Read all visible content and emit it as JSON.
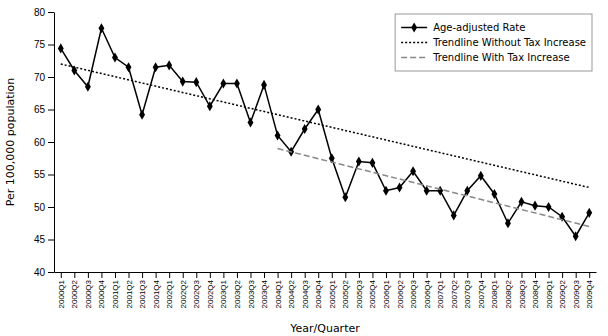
{
  "chart_data": {
    "type": "line",
    "xlabel": "Year/Quarter",
    "ylabel": "Per 100,000 population",
    "categories": [
      "2000Q1",
      "2000Q2",
      "2000Q3",
      "2000Q4",
      "2001Q1",
      "2001Q2",
      "2001Q3",
      "2001Q4",
      "2002Q1",
      "2002Q2",
      "2002Q3",
      "2002Q4",
      "2003Q1",
      "2003Q2",
      "2003Q3",
      "2003Q4",
      "2004Q1",
      "2004Q2",
      "2004Q3",
      "2004Q4",
      "2005Q1",
      "2005Q2",
      "2005Q3",
      "2005Q4",
      "2006Q1",
      "2006Q2",
      "2006Q3",
      "2006Q4",
      "2007Q1",
      "2007Q2",
      "2007Q3",
      "2007Q4",
      "2008Q1",
      "2008Q2",
      "2008Q3",
      "2008Q4",
      "2009Q1",
      "2009Q2",
      "2009Q3",
      "2009Q4"
    ],
    "series": [
      {
        "name": "Age-adjusted Rate",
        "color": "#000000",
        "marker": "diamond",
        "line_style": "solid",
        "values": [
          74.39,
          71.0,
          68.5,
          77.5,
          73.0,
          71.5,
          64.2,
          71.5,
          71.8,
          69.3,
          69.2,
          65.5,
          69.0,
          69.0,
          63.0,
          68.78,
          61.0,
          58.5,
          62.0,
          65.0,
          57.5,
          51.5,
          57.0,
          56.8,
          52.5,
          53.0,
          55.5,
          52.5,
          52.5,
          48.7,
          52.5,
          54.8,
          52.0,
          47.5,
          50.8,
          50.2,
          50.0,
          48.5,
          45.5,
          49.1
        ]
      },
      {
        "name": "Trendline Without Tax Increase",
        "color": "#000000",
        "line_style": "dotted",
        "x": [
          "2000Q1",
          "2009Q4"
        ],
        "values": [
          72.0,
          53.0
        ]
      },
      {
        "name": "Trendline With Tax Increase",
        "color": "#888888",
        "line_style": "dashed",
        "x": [
          "2004Q1",
          "2009Q4"
        ],
        "values": [
          59.0,
          47.0
        ]
      }
    ],
    "ylim": [
      40,
      80
    ],
    "yticks": [
      40,
      45,
      50,
      55,
      60,
      65,
      70,
      75,
      80
    ],
    "grid": false,
    "legend": "upper-right"
  }
}
